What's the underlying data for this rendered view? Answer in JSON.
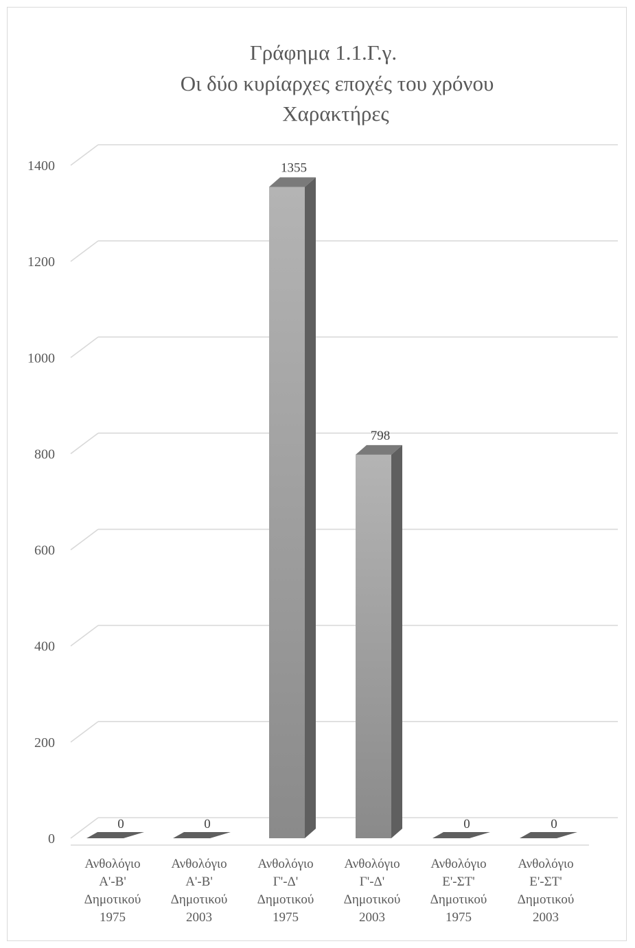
{
  "chart_data": {
    "type": "bar",
    "title_lines": [
      "Γράφημα 1.1.Γ.γ.",
      "Οι δύο κυρίαρχες εποχές του χρόνου",
      "Χαρακτήρες"
    ],
    "categories": [
      [
        "Ανθολόγιο",
        "Α'-Β'",
        "Δημοτικού",
        "1975"
      ],
      [
        "Ανθολόγιο",
        "Α'-Β'",
        "Δημοτικού",
        "2003"
      ],
      [
        "Ανθολόγιο",
        "Γ'-Δ'",
        "Δημοτικού",
        "1975"
      ],
      [
        "Ανθολόγιο",
        "Γ'-Δ'",
        "Δημοτικού",
        "2003"
      ],
      [
        "Ανθολόγιο",
        "Ε'-ΣΤ'",
        "Δημοτικού",
        "1975"
      ],
      [
        "Ανθολόγιο",
        "Ε'-ΣΤ'",
        "Δημοτικού",
        "2003"
      ]
    ],
    "values": [
      0,
      0,
      1355,
      798,
      0,
      0
    ],
    "data_labels": [
      "0",
      "0",
      "1355",
      "798",
      "0",
      "0"
    ],
    "y_ticks": [
      "0",
      "200",
      "400",
      "600",
      "800",
      "1000",
      "1200",
      "1400"
    ],
    "ylim": [
      0,
      1400
    ],
    "grid": true,
    "style": "3d-column",
    "colors": {
      "bar_front_top": "#b4b4b4",
      "bar_front_bottom": "#8a8a8a",
      "bar_side": "#5f5f5f",
      "bar_top": "#7a7a7a",
      "gridline": "#d9d9d9"
    }
  }
}
